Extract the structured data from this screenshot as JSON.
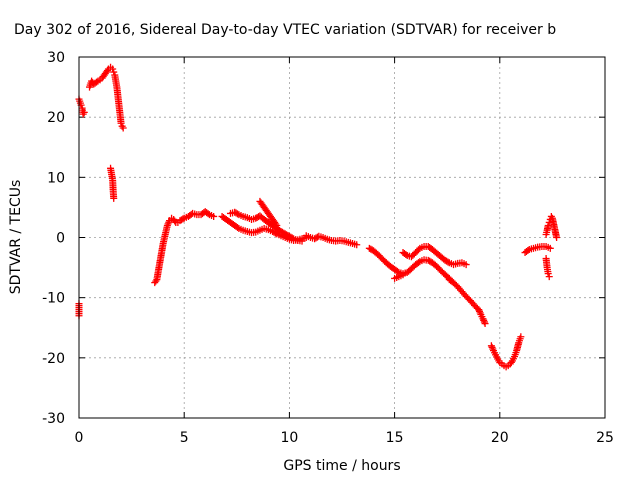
{
  "chart_data": {
    "type": "scatter",
    "title": "Day 302 of 2016, Sidereal Day-to-day VTEC variation (SDTVAR) for receiver b",
    "xlabel": "GPS time / hours",
    "ylabel": "SDTVAR / TECUs",
    "xlim": [
      0,
      25
    ],
    "ylim": [
      -30,
      30
    ],
    "xticks": [
      0,
      5,
      10,
      15,
      20,
      25
    ],
    "yticks": [
      -30,
      -20,
      -10,
      0,
      10,
      20,
      30
    ],
    "grid": true,
    "marker": "+",
    "color": "#ff0000",
    "series": [
      {
        "segments": [
          [
            [
              0.0,
              23.0
            ],
            [
              0.1,
              22.0
            ],
            [
              0.15,
              21.5
            ],
            [
              0.2,
              20.5
            ],
            [
              0.25,
              20.8
            ]
          ],
          [
            [
              0.0,
              -11.0
            ],
            [
              0.0,
              -12.0
            ],
            [
              0.0,
              -13.0
            ]
          ],
          [
            [
              0.5,
              25.0
            ],
            [
              0.6,
              26.0
            ],
            [
              0.7,
              25.5
            ],
            [
              0.9,
              26.0
            ],
            [
              1.0,
              26.2
            ],
            [
              1.1,
              26.5
            ],
            [
              1.2,
              27.0
            ],
            [
              1.3,
              27.5
            ],
            [
              1.4,
              28.0
            ],
            [
              1.5,
              28.3
            ],
            [
              1.6,
              28.0
            ],
            [
              1.65,
              27.5
            ],
            [
              1.7,
              27.0
            ],
            [
              1.75,
              26.0
            ],
            [
              1.8,
              25.0
            ],
            [
              1.85,
              23.5
            ],
            [
              1.9,
              22.0
            ],
            [
              1.95,
              20.5
            ],
            [
              2.0,
              19.0
            ],
            [
              2.05,
              18.5
            ],
            [
              2.1,
              18.2
            ]
          ],
          [
            [
              1.5,
              11.5
            ],
            [
              1.55,
              10.5
            ],
            [
              1.6,
              9.5
            ],
            [
              1.62,
              8.0
            ],
            [
              1.65,
              6.5
            ]
          ],
          [
            [
              3.6,
              -7.5
            ],
            [
              3.7,
              -7.0
            ],
            [
              3.8,
              -5.0
            ],
            [
              3.9,
              -3.0
            ],
            [
              4.0,
              -1.0
            ],
            [
              4.1,
              0.5
            ],
            [
              4.2,
              2.0
            ],
            [
              4.3,
              2.8
            ],
            [
              4.4,
              3.2
            ],
            [
              4.5,
              3.0
            ],
            [
              4.6,
              2.5
            ],
            [
              4.7,
              2.5
            ],
            [
              4.8,
              2.8
            ],
            [
              5.0,
              3.2
            ],
            [
              5.2,
              3.5
            ],
            [
              5.4,
              4.0
            ],
            [
              5.6,
              3.8
            ],
            [
              5.8,
              3.8
            ],
            [
              6.0,
              4.3
            ],
            [
              6.2,
              3.8
            ],
            [
              6.4,
              3.5
            ]
          ],
          [
            [
              6.8,
              3.5
            ],
            [
              7.0,
              3.0
            ],
            [
              7.2,
              2.5
            ],
            [
              7.4,
              2.0
            ],
            [
              7.6,
              1.5
            ],
            [
              7.8,
              1.2
            ],
            [
              8.0,
              1.0
            ],
            [
              8.2,
              0.8
            ],
            [
              8.4,
              0.9
            ],
            [
              8.6,
              1.2
            ],
            [
              8.8,
              1.5
            ],
            [
              9.0,
              1.3
            ],
            [
              9.2,
              1.0
            ],
            [
              9.4,
              0.6
            ],
            [
              9.6,
              0.3
            ],
            [
              9.8,
              0.0
            ],
            [
              10.0,
              -0.3
            ],
            [
              10.2,
              -0.5
            ],
            [
              10.4,
              -0.4
            ],
            [
              10.6,
              -0.2
            ],
            [
              10.8,
              0.0
            ]
          ],
          [
            [
              7.2,
              4.0
            ],
            [
              7.4,
              4.2
            ],
            [
              7.6,
              3.8
            ],
            [
              7.8,
              3.5
            ],
            [
              8.0,
              3.3
            ],
            [
              8.2,
              3.0
            ],
            [
              8.4,
              3.2
            ],
            [
              8.6,
              3.6
            ],
            [
              8.8,
              3.0
            ],
            [
              9.0,
              2.5
            ],
            [
              9.2,
              2.0
            ],
            [
              9.4,
              1.5
            ],
            [
              9.6,
              1.0
            ],
            [
              9.8,
              0.6
            ],
            [
              10.0,
              0.2
            ],
            [
              10.2,
              -0.2
            ],
            [
              10.4,
              -0.5
            ],
            [
              10.6,
              -0.6
            ]
          ],
          [
            [
              8.6,
              6.0
            ],
            [
              8.7,
              5.5
            ],
            [
              8.8,
              5.0
            ],
            [
              8.9,
              4.5
            ],
            [
              9.0,
              4.0
            ],
            [
              9.1,
              3.5
            ],
            [
              9.2,
              3.0
            ],
            [
              9.3,
              2.5
            ],
            [
              9.4,
              2.0
            ]
          ],
          [
            [
              10.8,
              0.3
            ],
            [
              11.0,
              0.0
            ],
            [
              11.2,
              -0.2
            ],
            [
              11.4,
              0.2
            ],
            [
              11.6,
              0.0
            ],
            [
              11.8,
              -0.3
            ],
            [
              12.0,
              -0.5
            ],
            [
              12.2,
              -0.6
            ],
            [
              12.4,
              -0.5
            ],
            [
              12.6,
              -0.6
            ],
            [
              12.8,
              -0.8
            ],
            [
              13.0,
              -1.0
            ],
            [
              13.2,
              -1.2
            ]
          ],
          [
            [
              13.8,
              -1.8
            ],
            [
              14.0,
              -2.2
            ],
            [
              14.2,
              -2.8
            ],
            [
              14.4,
              -3.5
            ],
            [
              14.6,
              -4.2
            ],
            [
              14.8,
              -4.8
            ],
            [
              15.0,
              -5.3
            ],
            [
              15.2,
              -5.8
            ],
            [
              15.4,
              -6.0
            ],
            [
              15.6,
              -5.8
            ],
            [
              15.8,
              -5.2
            ],
            [
              16.0,
              -4.5
            ],
            [
              16.2,
              -4.0
            ],
            [
              16.4,
              -3.7
            ],
            [
              16.6,
              -3.8
            ],
            [
              16.8,
              -4.2
            ],
            [
              17.0,
              -4.8
            ],
            [
              17.2,
              -5.5
            ],
            [
              17.4,
              -6.2
            ],
            [
              17.6,
              -6.8
            ]
          ],
          [
            [
              15.4,
              -2.5
            ],
            [
              15.6,
              -3.0
            ],
            [
              15.8,
              -3.2
            ],
            [
              16.0,
              -2.5
            ],
            [
              16.2,
              -1.8
            ],
            [
              16.4,
              -1.5
            ],
            [
              16.6,
              -1.5
            ],
            [
              16.8,
              -2.0
            ],
            [
              17.0,
              -2.6
            ],
            [
              17.2,
              -3.2
            ],
            [
              17.4,
              -3.8
            ],
            [
              17.6,
              -4.2
            ],
            [
              17.8,
              -4.5
            ],
            [
              18.0,
              -4.3
            ],
            [
              18.2,
              -4.2
            ],
            [
              18.4,
              -4.5
            ]
          ],
          [
            [
              15.0,
              -6.8
            ],
            [
              15.2,
              -6.5
            ],
            [
              15.4,
              -6.2
            ]
          ],
          [
            [
              17.6,
              -7.0
            ],
            [
              17.8,
              -7.5
            ],
            [
              18.0,
              -8.2
            ],
            [
              18.2,
              -9.0
            ],
            [
              18.4,
              -9.8
            ],
            [
              18.6,
              -10.5
            ],
            [
              18.8,
              -11.3
            ],
            [
              19.0,
              -12.0
            ],
            [
              19.1,
              -12.8
            ],
            [
              19.2,
              -13.5
            ],
            [
              19.3,
              -14.3
            ]
          ],
          [
            [
              19.6,
              -18.0
            ],
            [
              19.7,
              -18.8
            ],
            [
              19.8,
              -19.5
            ],
            [
              19.9,
              -20.2
            ],
            [
              20.0,
              -20.8
            ],
            [
              20.1,
              -21.0
            ],
            [
              20.2,
              -21.3
            ],
            [
              20.3,
              -21.5
            ],
            [
              20.4,
              -21.3
            ],
            [
              20.5,
              -21.0
            ],
            [
              20.6,
              -20.5
            ],
            [
              20.7,
              -19.8
            ],
            [
              20.8,
              -18.8
            ],
            [
              20.9,
              -17.5
            ],
            [
              21.0,
              -16.5
            ]
          ],
          [
            [
              21.2,
              -2.5
            ],
            [
              21.4,
              -2.0
            ],
            [
              21.6,
              -1.8
            ],
            [
              21.8,
              -1.6
            ],
            [
              22.0,
              -1.5
            ],
            [
              22.2,
              -1.5
            ],
            [
              22.4,
              -1.8
            ]
          ],
          [
            [
              22.2,
              -3.5
            ],
            [
              22.25,
              -5.0
            ],
            [
              22.3,
              -6.0
            ],
            [
              22.35,
              -6.5
            ]
          ],
          [
            [
              22.2,
              0.5
            ],
            [
              22.25,
              1.2
            ],
            [
              22.3,
              2.0
            ],
            [
              22.35,
              2.5
            ],
            [
              22.4,
              3.0
            ],
            [
              22.45,
              3.5
            ],
            [
              22.5,
              3.2
            ],
            [
              22.7,
              0.0
            ]
          ]
        ]
      }
    ]
  }
}
